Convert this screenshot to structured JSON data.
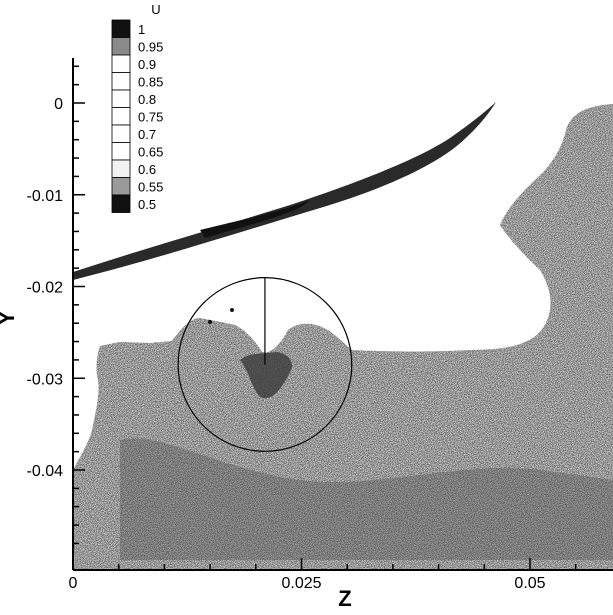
{
  "chart_data": {
    "type": "heatmap",
    "title": "",
    "xlabel": "Z",
    "ylabel": "Y",
    "xlim": [
      0,
      0.06
    ],
    "ylim": [
      -0.05,
      0.004
    ],
    "x_ticks": [
      {
        "value": 0,
        "label": "0"
      },
      {
        "value": 0.025,
        "label": "0.025"
      },
      {
        "value": 0.05,
        "label": "0.05"
      }
    ],
    "y_ticks": [
      {
        "value": 0,
        "label": "0"
      },
      {
        "value": -0.01,
        "label": "-0.01"
      },
      {
        "value": -0.02,
        "label": "-0.02"
      },
      {
        "value": -0.03,
        "label": "-0.03"
      },
      {
        "value": -0.04,
        "label": "-0.04"
      }
    ],
    "legend": {
      "title": "U",
      "placement": "top-left",
      "levels": [
        {
          "label": "1",
          "color": "#111111"
        },
        {
          "label": "0.95",
          "color": "#8a8a8a"
        },
        {
          "label": "0.9",
          "color": "#ffffff"
        },
        {
          "label": "0.85",
          "color": "#ffffff"
        },
        {
          "label": "0.8",
          "color": "#ffffff"
        },
        {
          "label": "0.75",
          "color": "#ffffff"
        },
        {
          "label": "0.7",
          "color": "#ffffff"
        },
        {
          "label": "0.65",
          "color": "#ffffff"
        },
        {
          "label": "0.6",
          "color": "#f2f2f2"
        },
        {
          "label": "0.55",
          "color": "#9a9a9a"
        },
        {
          "label": "0.5",
          "color": "#111111"
        }
      ]
    },
    "circle": {
      "center_z": 0.021,
      "center_y": -0.0285,
      "radius": 0.0095
    },
    "colors": {
      "region_fill": "#5f5f5f",
      "region_dark": "#2c2c2c",
      "background": "#ffffff",
      "axis": "#000000"
    }
  }
}
